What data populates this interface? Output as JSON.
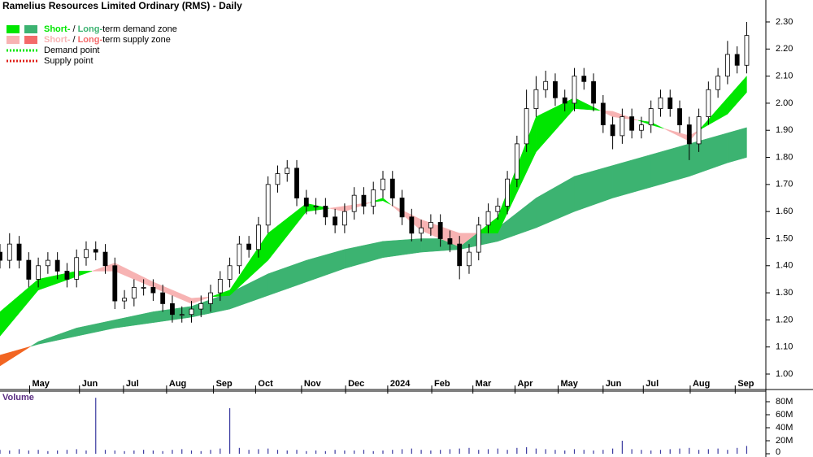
{
  "chart_data": {
    "type": "candlestick",
    "title": "Ramelius Resources Limited Ordinary (RMS) - Daily",
    "legend": [
      {
        "parts": [
          "Short-",
          " / ",
          "Long-",
          "term demand zone"
        ],
        "colors": [
          "#00e600",
          "#3cb371"
        ],
        "kind": "zone"
      },
      {
        "parts": [
          "Short-",
          " / ",
          "Long-",
          "term supply zone"
        ],
        "colors": [
          "#f7b3b3",
          "#f46a6a"
        ],
        "kind": "zone"
      },
      {
        "parts": [
          "Demand point"
        ],
        "colors": [
          "#00e600"
        ],
        "kind": "point"
      },
      {
        "parts": [
          "Supply point"
        ],
        "colors": [
          "#e0201a"
        ],
        "kind": "point"
      }
    ],
    "xlim": [
      0,
      80
    ],
    "xticks": [
      {
        "value": 3.1,
        "label": "May"
      },
      {
        "value": 8.3,
        "label": "Jun"
      },
      {
        "value": 12.9,
        "label": "Jul"
      },
      {
        "value": 17.4,
        "label": "Aug"
      },
      {
        "value": 22.3,
        "label": "Sep"
      },
      {
        "value": 26.7,
        "label": "Oct"
      },
      {
        "value": 31.5,
        "label": "Nov"
      },
      {
        "value": 36.1,
        "label": "Dec"
      },
      {
        "value": 40.5,
        "label": "2024"
      },
      {
        "value": 45.1,
        "label": "Feb"
      },
      {
        "value": 49.4,
        "label": "Mar"
      },
      {
        "value": 53.8,
        "label": "Apr"
      },
      {
        "value": 58.3,
        "label": "May"
      },
      {
        "value": 63,
        "label": "Jun"
      },
      {
        "value": 67.2,
        "label": "Jul"
      },
      {
        "value": 72.1,
        "label": "Aug"
      },
      {
        "value": 76.8,
        "label": "Sep"
      }
    ],
    "ylim": [
      0.946,
      2.381
    ],
    "yticks": [
      {
        "value": 1,
        "label": "1.00"
      },
      {
        "value": 1.1,
        "label": "1.10"
      },
      {
        "value": 1.2,
        "label": "1.20"
      },
      {
        "value": 1.3,
        "label": "1.30"
      },
      {
        "value": 1.4,
        "label": "1.40"
      },
      {
        "value": 1.5,
        "label": "1.50"
      },
      {
        "value": 1.6,
        "label": "1.60"
      },
      {
        "value": 1.7,
        "label": "1.70"
      },
      {
        "value": 1.8,
        "label": "1.80"
      },
      {
        "value": 1.9,
        "label": "1.90"
      },
      {
        "value": 2,
        "label": "2.00"
      },
      {
        "value": 2.1,
        "label": "2.10"
      },
      {
        "value": 2.2,
        "label": "2.20"
      },
      {
        "value": 2.3,
        "label": "2.30"
      }
    ],
    "open": [
      1.45,
      1.42,
      1.48,
      1.42,
      1.35,
      1.4,
      1.42,
      1.38,
      1.35,
      1.43,
      1.46,
      1.45,
      1.4,
      1.27,
      1.28,
      1.32,
      1.32,
      1.3,
      1.26,
      1.22,
      1.22,
      1.24,
      1.26,
      1.3,
      1.35,
      1.4,
      1.48,
      1.46,
      1.55,
      1.7,
      1.74,
      1.76,
      1.65,
      1.62,
      1.62,
      1.58,
      1.55,
      1.6,
      1.66,
      1.62,
      1.68,
      1.72,
      1.65,
      1.58,
      1.52,
      1.54,
      1.56,
      1.5,
      1.48,
      1.4,
      1.45,
      1.55,
      1.6,
      1.62,
      1.72,
      1.85,
      1.98,
      2.05,
      2.08,
      2.02,
      2.0,
      2.1,
      2.08,
      2.0,
      1.92,
      1.88,
      1.95,
      1.9,
      1.92,
      1.98,
      2.02,
      1.98,
      1.92,
      1.85,
      1.95,
      2.05,
      2.1,
      2.18,
      2.14
    ],
    "high": [
      1.48,
      1.52,
      1.51,
      1.45,
      1.43,
      1.45,
      1.45,
      1.41,
      1.46,
      1.49,
      1.49,
      1.48,
      1.43,
      1.31,
      1.35,
      1.35,
      1.35,
      1.33,
      1.29,
      1.25,
      1.27,
      1.29,
      1.33,
      1.38,
      1.43,
      1.51,
      1.51,
      1.58,
      1.73,
      1.77,
      1.79,
      1.79,
      1.68,
      1.65,
      1.65,
      1.61,
      1.63,
      1.69,
      1.69,
      1.71,
      1.75,
      1.75,
      1.68,
      1.61,
      1.57,
      1.59,
      1.59,
      1.53,
      1.51,
      1.48,
      1.58,
      1.63,
      1.65,
      1.75,
      1.88,
      2.05,
      2.1,
      2.12,
      2.11,
      2.05,
      2.13,
      2.13,
      2.11,
      2.03,
      1.95,
      1.98,
      1.98,
      1.95,
      2.01,
      2.05,
      2.05,
      2.01,
      1.95,
      1.98,
      2.08,
      2.13,
      2.23,
      2.21,
      2.3
    ],
    "low": [
      1.39,
      1.39,
      1.39,
      1.32,
      1.32,
      1.37,
      1.35,
      1.32,
      1.32,
      1.4,
      1.42,
      1.37,
      1.24,
      1.24,
      1.25,
      1.29,
      1.27,
      1.23,
      1.19,
      1.19,
      1.19,
      1.21,
      1.23,
      1.27,
      1.32,
      1.37,
      1.43,
      1.43,
      1.52,
      1.67,
      1.71,
      1.62,
      1.59,
      1.59,
      1.55,
      1.52,
      1.52,
      1.57,
      1.59,
      1.59,
      1.65,
      1.62,
      1.55,
      1.49,
      1.49,
      1.51,
      1.47,
      1.45,
      1.35,
      1.37,
      1.42,
      1.52,
      1.57,
      1.59,
      1.69,
      1.82,
      1.95,
      2.02,
      1.99,
      1.97,
      1.97,
      2.05,
      1.97,
      1.89,
      1.83,
      1.85,
      1.87,
      1.87,
      1.89,
      1.95,
      1.95,
      1.89,
      1.79,
      1.82,
      1.92,
      2.02,
      2.07,
      2.11,
      2.11
    ],
    "close": [
      1.42,
      1.48,
      1.42,
      1.35,
      1.4,
      1.42,
      1.38,
      1.35,
      1.43,
      1.46,
      1.45,
      1.4,
      1.27,
      1.28,
      1.32,
      1.32,
      1.3,
      1.26,
      1.22,
      1.22,
      1.24,
      1.26,
      1.3,
      1.35,
      1.4,
      1.48,
      1.46,
      1.55,
      1.7,
      1.74,
      1.76,
      1.65,
      1.62,
      1.62,
      1.58,
      1.55,
      1.6,
      1.66,
      1.62,
      1.68,
      1.72,
      1.65,
      1.58,
      1.52,
      1.54,
      1.56,
      1.5,
      1.48,
      1.4,
      1.45,
      1.55,
      1.6,
      1.62,
      1.72,
      1.85,
      1.98,
      2.05,
      2.08,
      2.02,
      2.0,
      2.1,
      2.08,
      2.0,
      1.92,
      1.88,
      1.95,
      1.9,
      1.92,
      1.98,
      2.02,
      1.98,
      1.92,
      1.85,
      1.95,
      2.05,
      2.1,
      2.18,
      2.14,
      2.25
    ],
    "zones": {
      "x": [
        0,
        4,
        8,
        12,
        16,
        20,
        24,
        28,
        32,
        36,
        40,
        44,
        48,
        52,
        56,
        60,
        64,
        68,
        72,
        76,
        78
      ],
      "long_fast": [
        1.03,
        1.12,
        1.17,
        1.2,
        1.23,
        1.25,
        1.3,
        1.37,
        1.42,
        1.46,
        1.49,
        1.5,
        1.5,
        1.54,
        1.65,
        1.73,
        1.77,
        1.81,
        1.85,
        1.89,
        1.91
      ],
      "long_slow": [
        1.07,
        1.11,
        1.14,
        1.17,
        1.19,
        1.21,
        1.24,
        1.29,
        1.34,
        1.39,
        1.43,
        1.45,
        1.46,
        1.49,
        1.54,
        1.6,
        1.65,
        1.69,
        1.73,
        1.78,
        1.8
      ],
      "short_fast": [
        1.23,
        1.35,
        1.38,
        1.38,
        1.32,
        1.26,
        1.31,
        1.52,
        1.63,
        1.6,
        1.65,
        1.53,
        1.47,
        1.58,
        1.95,
        2.02,
        1.95,
        1.93,
        1.86,
        2.02,
        2.1
      ],
      "short_slow": [
        1.14,
        1.31,
        1.36,
        1.41,
        1.34,
        1.28,
        1.29,
        1.42,
        1.6,
        1.62,
        1.64,
        1.57,
        1.52,
        1.52,
        1.82,
        1.98,
        1.97,
        1.92,
        1.88,
        1.96,
        2.04
      ],
      "short_colors": [
        "#00e600",
        "#f7b3b3"
      ],
      "long_colors": [
        "#3cb371",
        "#f26522"
      ]
    },
    "volume": {
      "label": "Volume",
      "ylim": [
        0,
        95000000
      ],
      "yticks": [
        0,
        {
          "value": 20000000,
          "label": "20M"
        },
        {
          "value": 40000000,
          "label": "40M"
        },
        {
          "value": 60000000,
          "label": "60M"
        },
        {
          "value": 80000000,
          "label": "80M"
        }
      ],
      "color": "#3a3aa0",
      "values": [
        6000000,
        5000000,
        7000000,
        5000000,
        6000000,
        4000000,
        5000000,
        6000000,
        7000000,
        5000000,
        86000000,
        6000000,
        5000000,
        4000000,
        5000000,
        6000000,
        5000000,
        4000000,
        6000000,
        7000000,
        5000000,
        4000000,
        6000000,
        8000000,
        70000000,
        9000000,
        6000000,
        7000000,
        8000000,
        6000000,
        5000000,
        6000000,
        4000000,
        5000000,
        4000000,
        6000000,
        5000000,
        5000000,
        6000000,
        4000000,
        5000000,
        6000000,
        7000000,
        8000000,
        6000000,
        5000000,
        6000000,
        7000000,
        8000000,
        9000000,
        6000000,
        7000000,
        8000000,
        6000000,
        9000000,
        10000000,
        8000000,
        7000000,
        6000000,
        5000000,
        7000000,
        6000000,
        5000000,
        6000000,
        8000000,
        20000000,
        7000000,
        6000000,
        5000000,
        6000000,
        7000000,
        8000000,
        9000000,
        6000000,
        7000000,
        8000000,
        6000000,
        9000000,
        12000000
      ]
    }
  }
}
